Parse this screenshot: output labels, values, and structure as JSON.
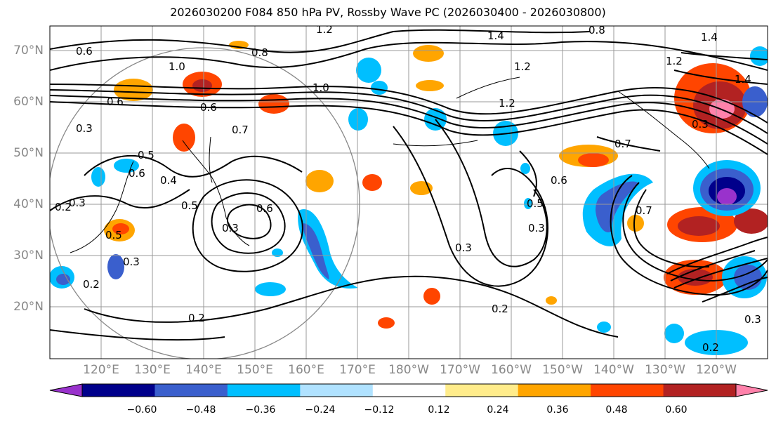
{
  "title": "2026030200 F084 850 hPa PV, Rossby Wave PC (2026030400 - 2026030800)",
  "lat_labels": [
    "70°N",
    "60°N",
    "50°N",
    "40°N",
    "30°N",
    "20°N"
  ],
  "lon_labels": [
    "120°E",
    "130°E",
    "140°E",
    "150°E",
    "160°E",
    "170°E",
    "180°W",
    "170°W",
    "160°W",
    "150°W",
    "140°W",
    "130°W",
    "120°W"
  ],
  "colorbar": {
    "ticks": [
      "−0.60",
      "−0.48",
      "−0.36",
      "−0.24",
      "−0.12",
      "0.12",
      "0.24",
      "0.36",
      "0.48",
      "0.60"
    ],
    "colors": [
      "#9932cc",
      "#00008b",
      "#3a5fcd",
      "#00bfff",
      "#b0e2ff",
      "#ffffff",
      "#ffec8b",
      "#ffa500",
      "#ff4500",
      "#b22222",
      "#ff82ab"
    ]
  },
  "contour_labels": [
    "0.6",
    "0.8",
    "1.0",
    "1.2",
    "1.4",
    "1.2",
    "0.8",
    "1.4",
    "1.2",
    "1.4",
    "1.2",
    "0.6",
    "0.3",
    "0.5",
    "0.4",
    "0.6",
    "0.7",
    "0.5",
    "0.6",
    "0.3",
    "0.2",
    "0.3",
    "0.5",
    "0.3",
    "0.2",
    "0.2",
    "0.3",
    "0.6",
    "0.5",
    "0.3",
    "0.7",
    "0.7",
    "0.2",
    "0.3",
    "0.2",
    "1.0",
    "0.6",
    "0.3"
  ]
}
